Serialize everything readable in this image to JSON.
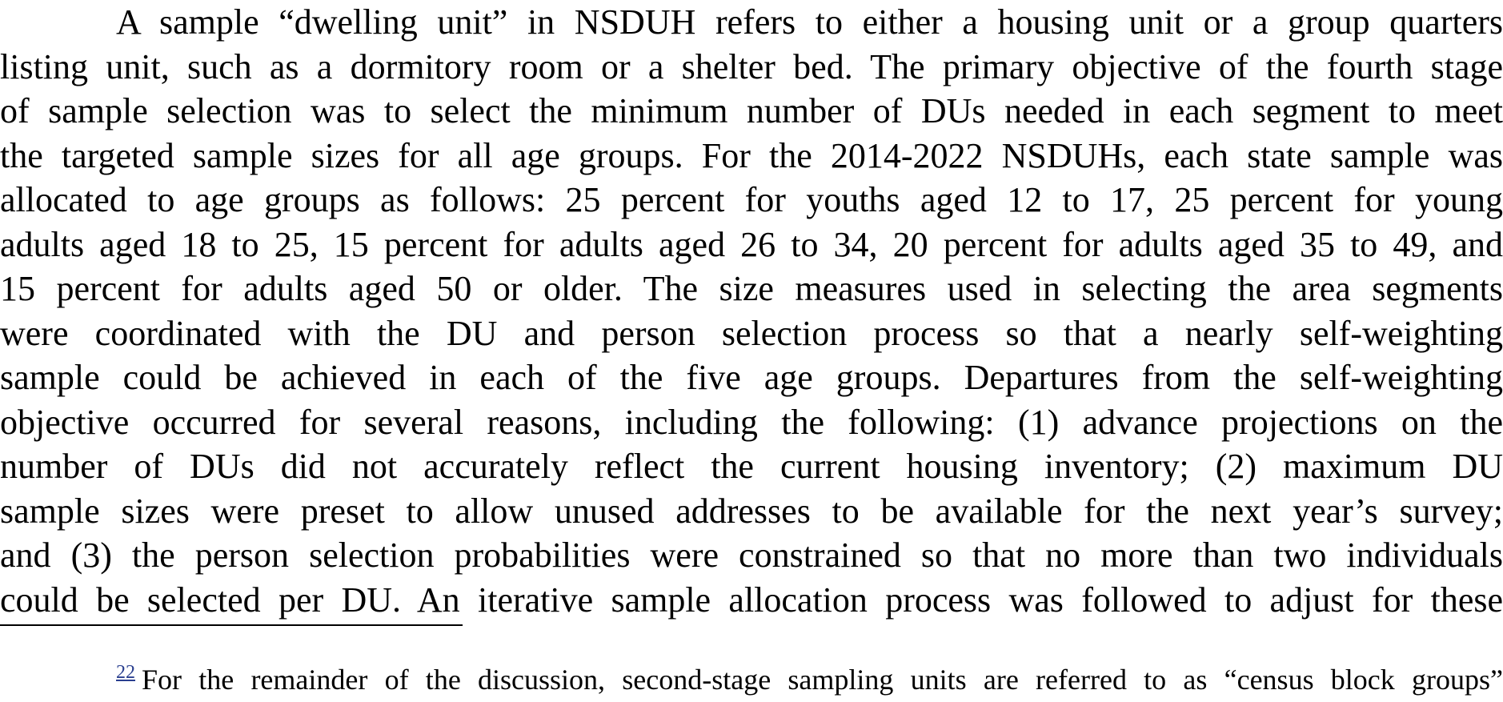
{
  "paragraph": {
    "lines": [
      "A sample “dwelling unit” in NSDUH refers to either a housing unit or a group quarters",
      "listing unit, such as a dormitory room or a shelter bed. The primary objective of the fourth stage",
      "of sample selection was to select the minimum number of DUs needed in each segment to meet",
      "the targeted sample sizes for all age groups. For the 2014-2022 NSDUHs, each state sample was",
      "allocated to age groups as follows: 25 percent for youths aged 12 to 17, 25 percent for young",
      "adults aged 18 to 25, 15 percent for adults aged 26 to 34, 20 percent for adults aged 35 to 49, and",
      "15 percent for adults aged 50 or older. The size measures used in selecting the area segments",
      "were coordinated with the DU and person selection process so that a nearly self-weighting",
      "sample could be achieved in each of the five age groups. Departures from the self-weighting",
      "objective occurred for several reasons, including the following: (1) advance projections on the",
      "number of DUs did not accurately reflect the current housing inventory; (2) maximum DU",
      "sample sizes were preset to allow unused addresses to be available for the next year’s survey;",
      "and (3) the person selection probabilities were constrained so that no more than two individuals",
      "could be selected per DU. An iterative sample allocation process was followed to adjust for these"
    ]
  },
  "footnote": {
    "marker": "22",
    "text": "For the remainder of the discussion, second-stage sampling units are referred to as “census block groups”"
  },
  "colors": {
    "text": "#000000",
    "footnote_link": "#2a3f8f",
    "background": "#ffffff"
  }
}
